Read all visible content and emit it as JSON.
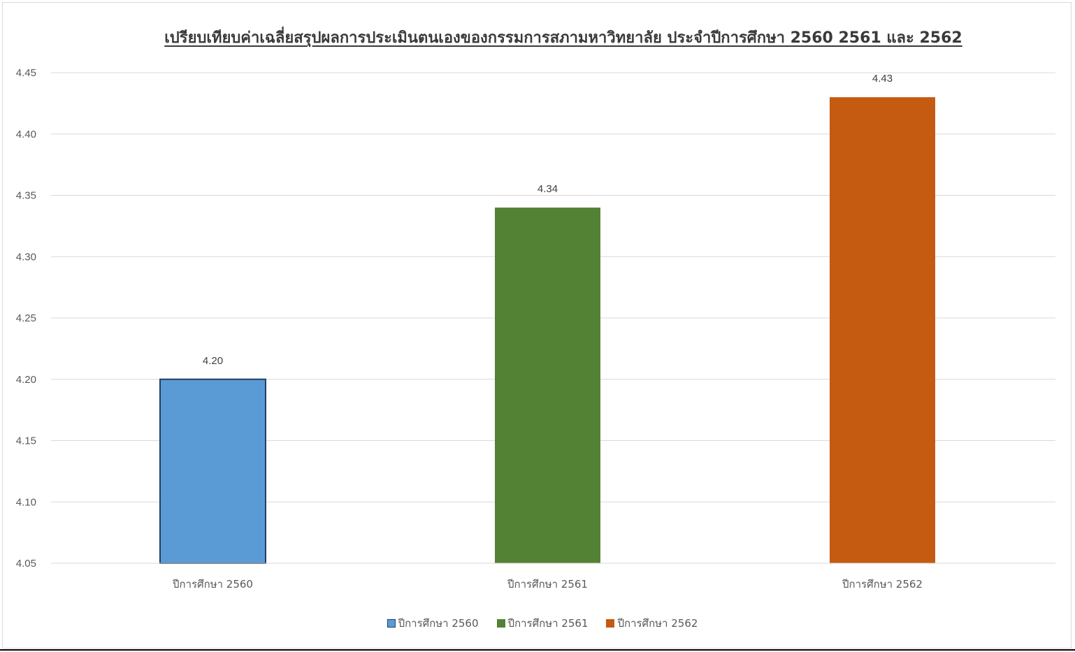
{
  "chart_data": {
    "type": "bar",
    "title": "เปรียบเทียบค่าเฉลี่ยสรุปผลการประเมินตนเองของกรรมการสภามหาวิทยาลัย ประจำปีการศึกษา 2560 2561 และ 2562",
    "categories": [
      "ปีการศึกษา 2560",
      "ปีการศึกษา 2561",
      "ปีการศึกษา 2562"
    ],
    "values": [
      4.2,
      4.34,
      4.43
    ],
    "value_labels": [
      "4.20",
      "4.34",
      "4.43"
    ],
    "colors": [
      "#5b9bd5",
      "#548235",
      "#c55a11"
    ],
    "ylim": [
      4.05,
      4.45
    ],
    "yticks": [
      "4.05",
      "4.10",
      "4.15",
      "4.20",
      "4.25",
      "4.30",
      "4.35",
      "4.40",
      "4.45"
    ],
    "grid": true,
    "legend_position": "bottom",
    "legend": [
      "ปีการศึกษา 2560",
      "ปีการศึกษา 2561",
      "ปีการศึกษา 2562"
    ],
    "xlabel": "",
    "ylabel": ""
  }
}
